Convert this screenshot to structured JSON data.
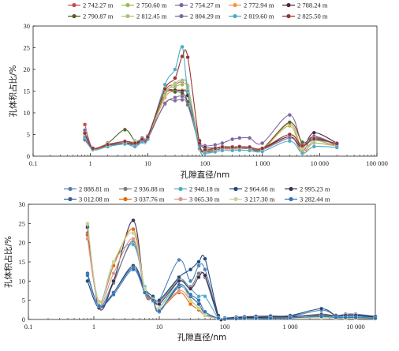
{
  "chart_data": [
    {
      "type": "line",
      "xlabel": "孔隙直径/nm",
      "ylabel": "孔体积占比/%",
      "xscale": "log",
      "xlim": [
        0.1,
        100000
      ],
      "ylim": [
        0,
        30
      ],
      "yticks": [
        0,
        5,
        10,
        15,
        20,
        25,
        30
      ],
      "xtick_labels": [
        "0.1",
        "1",
        "10",
        "100",
        "1 000",
        "10 000",
        "100 000"
      ],
      "legend_position": "top",
      "x": [
        0.8,
        1.1,
        2,
        4,
        6,
        8,
        10,
        20,
        30,
        40,
        50,
        80,
        100,
        150,
        200,
        300,
        400,
        600,
        1000,
        3000,
        5000,
        8000,
        20000
      ],
      "series": [
        {
          "name": "2 742.27 m",
          "color": "#c0504d",
          "values": [
            7.3,
            1.8,
            2.5,
            3.2,
            2.6,
            4.0,
            4.7,
            15.0,
            16.5,
            17.2,
            16.2,
            2.5,
            1.2,
            1.4,
            2.0,
            2.0,
            2.2,
            2.0,
            1.6,
            4.5,
            1.2,
            4.5,
            2.3
          ]
        },
        {
          "name": "2 750.60 m",
          "color": "#9bbb59",
          "values": [
            5.8,
            1.6,
            2.4,
            3.0,
            3.0,
            3.8,
            4.2,
            14.5,
            16.0,
            16.5,
            15.5,
            2.3,
            1.0,
            1.2,
            1.8,
            1.8,
            2.0,
            1.9,
            1.5,
            7.0,
            0.6,
            3.6,
            2.2
          ]
        },
        {
          "name": "2 754.27 m",
          "color": "#8064a2",
          "values": [
            6.0,
            1.9,
            2.6,
            3.4,
            3.2,
            4.2,
            4.6,
            12.0,
            13.5,
            13.8,
            12.2,
            3.6,
            2.4,
            2.6,
            3.0,
            3.9,
            4.2,
            4.2,
            3.0,
            9.5,
            2.8,
            3.8,
            2.9
          ]
        },
        {
          "name": "2 772.94 m",
          "color": "#f79646",
          "values": [
            4.2,
            1.7,
            2.3,
            2.9,
            3.0,
            3.6,
            4.1,
            13.5,
            15.0,
            15.2,
            14.0,
            1.6,
            0.8,
            1.2,
            1.6,
            1.6,
            1.7,
            1.7,
            1.3,
            7.5,
            1.4,
            3.0,
            2.4
          ]
        },
        {
          "name": "2 788.24 m",
          "color": "#4f2540",
          "values": [
            3.8,
            1.8,
            2.5,
            3.0,
            2.8,
            3.7,
            4.3,
            14.2,
            15.2,
            15.0,
            14.0,
            3.5,
            2.0,
            1.9,
            2.2,
            2.1,
            2.0,
            1.9,
            1.8,
            4.5,
            2.0,
            5.4,
            3.0
          ]
        },
        {
          "name": "2 790.87 m",
          "color": "#4f6228",
          "values": [
            4.7,
            1.9,
            3.0,
            6.1,
            3.5,
            3.8,
            4.0,
            14.2,
            14.8,
            14.5,
            12.5,
            2.4,
            1.2,
            1.5,
            1.8,
            1.9,
            2.0,
            1.8,
            1.7,
            7.8,
            3.2,
            4.3,
            2.8
          ]
        },
        {
          "name": "2 812.45 m",
          "color": "#a9c47f",
          "values": [
            4.9,
            1.9,
            2.8,
            3.2,
            3.4,
            3.9,
            4.3,
            14.0,
            16.8,
            17.5,
            16.0,
            2.5,
            1.4,
            1.6,
            2.0,
            2.0,
            2.1,
            2.0,
            1.8,
            5.0,
            2.0,
            3.0,
            2.3
          ]
        },
        {
          "name": "2 804.29 m",
          "color": "#7f6a9f",
          "values": [
            4.0,
            1.8,
            2.6,
            3.0,
            2.5,
            3.5,
            4.0,
            12.2,
            12.8,
            13.0,
            11.8,
            2.6,
            1.1,
            1.4,
            1.8,
            1.8,
            1.9,
            1.8,
            1.5,
            4.2,
            2.4,
            4.6,
            2.6
          ]
        },
        {
          "name": "2 819.60 m",
          "color": "#4bacc6",
          "values": [
            4.4,
            1.5,
            2.2,
            2.8,
            2.2,
            3.3,
            3.9,
            16.5,
            20.0,
            25.2,
            15.0,
            1.8,
            0.7,
            1.0,
            1.3,
            1.3,
            1.4,
            1.3,
            1.1,
            3.5,
            0.7,
            2.2,
            2.0
          ]
        },
        {
          "name": "2 825.50 m",
          "color": "#943634",
          "values": [
            5.3,
            1.8,
            2.7,
            3.4,
            3.0,
            3.9,
            4.4,
            15.5,
            18.0,
            23.0,
            22.8,
            3.0,
            1.5,
            1.8,
            2.1,
            2.1,
            2.2,
            2.1,
            1.8,
            5.0,
            2.4,
            4.0,
            2.9
          ]
        }
      ]
    },
    {
      "type": "line",
      "xlabel": "孔隙直径/nm",
      "ylabel": "孔体积占比/%",
      "xscale": "log",
      "xlim": [
        0.1,
        20000
      ],
      "ylim": [
        0,
        30
      ],
      "yticks": [
        0,
        5,
        10,
        15,
        20,
        25,
        30
      ],
      "xtick_labels": [
        "0.1",
        "1",
        "10",
        "100",
        "1 000",
        "10 000"
      ],
      "legend_position": "top",
      "x": [
        0.8,
        1.2,
        2,
        4,
        6,
        8,
        10,
        20,
        30,
        40,
        50,
        80,
        100,
        150,
        200,
        300,
        500,
        1000,
        3000,
        5000,
        7000,
        10000,
        20000
      ],
      "series": [
        {
          "name": "2 888.81 m",
          "color": "#4f81bd",
          "values": [
            22.0,
            4.0,
            10.0,
            20.0,
            7.5,
            5.0,
            5.0,
            15.5,
            10.0,
            14.0,
            13.0,
            0.8,
            0.3,
            0.6,
            0.6,
            0.7,
            0.8,
            0.8,
            2.4,
            1.1,
            1.4,
            1.4,
            0.8
          ]
        },
        {
          "name": "2 936.88 m",
          "color": "#7f7f7f",
          "values": [
            22.5,
            3.5,
            9.5,
            20.5,
            7.0,
            5.5,
            4.5,
            10.5,
            8.5,
            12.0,
            11.0,
            0.6,
            0.2,
            0.4,
            0.5,
            0.5,
            0.6,
            0.6,
            1.4,
            0.9,
            1.2,
            1.2,
            0.6
          ]
        },
        {
          "name": "2 948.18 m",
          "color": "#4bacc6",
          "values": [
            24.5,
            4.5,
            15.0,
            19.5,
            8.5,
            4.8,
            3.0,
            10.0,
            8.0,
            6.0,
            6.0,
            0.3,
            0.1,
            0.3,
            0.3,
            0.4,
            0.5,
            0.7,
            1.1,
            0.7,
            0.7,
            0.7,
            0.5
          ]
        },
        {
          "name": "2 964.68 m",
          "color": "#1f497d",
          "values": [
            10.0,
            3.0,
            7.0,
            14.0,
            8.0,
            6.0,
            5.0,
            11.0,
            13.0,
            15.0,
            15.8,
            1.0,
            0.4,
            0.6,
            0.7,
            0.8,
            0.9,
            1.0,
            2.8,
            1.0,
            1.1,
            1.1,
            0.8
          ]
        },
        {
          "name": "2 995.23 m",
          "color": "#403151",
          "values": [
            24.0,
            3.0,
            10.0,
            25.8,
            7.0,
            5.5,
            4.0,
            10.0,
            8.0,
            11.0,
            11.5,
            0.5,
            0.2,
            0.4,
            0.5,
            0.5,
            0.6,
            0.7,
            1.2,
            0.9,
            1.0,
            1.0,
            0.6
          ]
        },
        {
          "name": "3 012.08 m",
          "color": "#376092",
          "values": [
            12.0,
            3.5,
            7.0,
            13.5,
            7.5,
            5.0,
            2.0,
            8.5,
            6.0,
            4.0,
            1.5,
            0.3,
            0.1,
            0.2,
            0.2,
            0.3,
            0.3,
            0.4,
            0.6,
            0.5,
            0.4,
            0.4,
            0.3
          ]
        },
        {
          "name": "3 037.76 m",
          "color": "#e46c0a",
          "values": [
            22.0,
            4.5,
            14.0,
            23.5,
            7.5,
            5.0,
            2.5,
            7.0,
            4.0,
            2.5,
            1.0,
            0.2,
            0.1,
            0.2,
            0.2,
            0.2,
            0.3,
            0.4,
            0.5,
            0.4,
            0.3,
            0.3,
            0.2
          ]
        },
        {
          "name": "3 065.30 m",
          "color": "#d99694",
          "values": [
            21.0,
            4.0,
            12.0,
            21.0,
            7.0,
            5.0,
            2.5,
            7.5,
            5.0,
            3.0,
            1.2,
            0.2,
            0.1,
            0.2,
            0.2,
            0.2,
            0.3,
            0.4,
            0.5,
            0.4,
            0.3,
            0.3,
            0.2
          ]
        },
        {
          "name": "3 217.30 m",
          "color": "#c3d69b",
          "values": [
            25.0,
            4.2,
            15.0,
            22.5,
            8.0,
            5.2,
            3.0,
            9.0,
            5.0,
            3.0,
            1.0,
            0.2,
            0.1,
            0.2,
            0.2,
            0.2,
            0.3,
            0.4,
            0.5,
            0.4,
            0.3,
            0.3,
            0.2
          ]
        },
        {
          "name": "3 282.44 m",
          "color": "#2e75b6",
          "values": [
            11.5,
            3.5,
            6.5,
            13.0,
            7.0,
            5.0,
            2.2,
            9.0,
            6.5,
            5.0,
            2.0,
            0.3,
            0.1,
            0.2,
            0.3,
            0.3,
            0.3,
            0.4,
            0.8,
            0.5,
            0.5,
            0.5,
            0.3
          ]
        }
      ]
    }
  ]
}
